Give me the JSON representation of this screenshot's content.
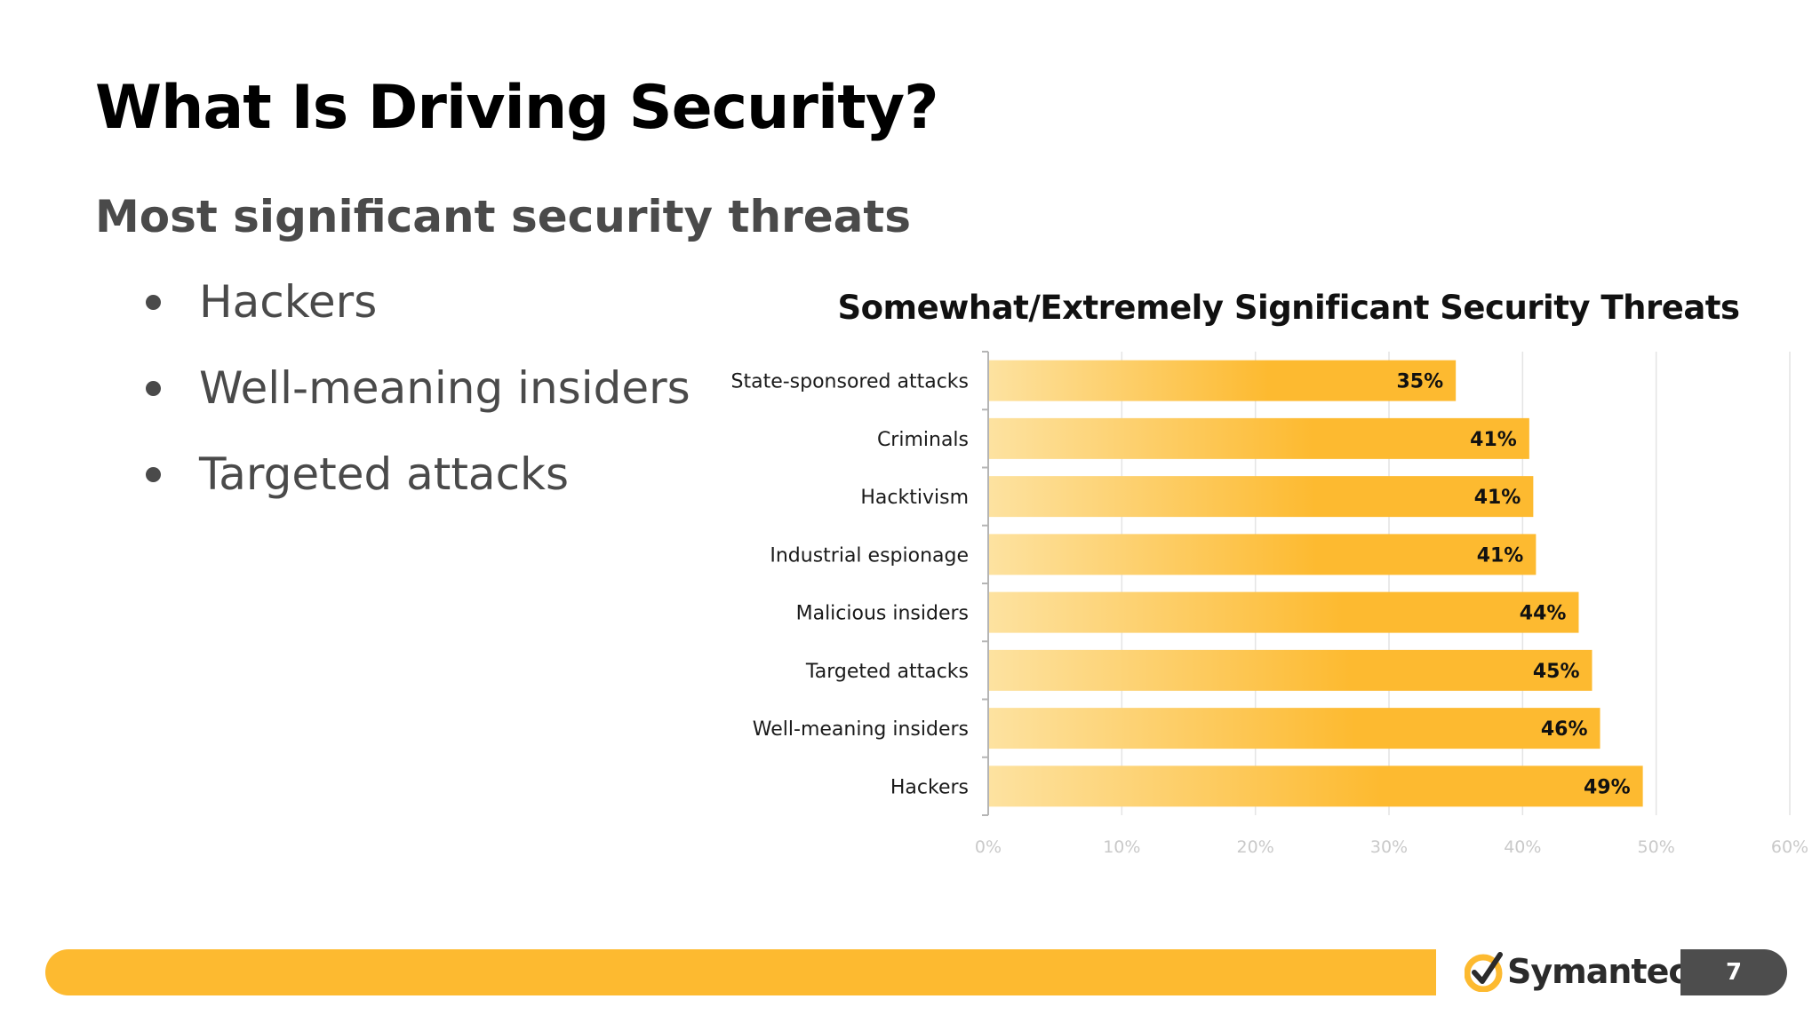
{
  "slide": {
    "title": "What Is Driving Security?",
    "subtitle": "Most significant security threats",
    "bullets": [
      "Hackers",
      "Well-meaning insiders",
      "Targeted attacks"
    ],
    "page_number": "7"
  },
  "brand": {
    "logo_text": "Symantec",
    "logo_suffix": ".",
    "accent_color": "#fdba30",
    "badge_color": "#4d4d4d",
    "logo_icon": "checkmark-circle-icon"
  },
  "chart_data": {
    "type": "bar",
    "orientation": "horizontal",
    "title": "Somewhat/Extremely Significant Security Threats",
    "categories": [
      "State-sponsored attacks",
      "Criminals",
      "Hacktivism",
      "Industrial espionage",
      "Malicious insiders",
      "Targeted attacks",
      "Well-meaning insiders",
      "Hackers"
    ],
    "values": [
      35,
      40.5,
      40.8,
      41,
      44.2,
      45.2,
      45.8,
      49
    ],
    "data_labels": [
      "35%",
      "41%",
      "41%",
      "41%",
      "44%",
      "45%",
      "46%",
      "49%"
    ],
    "x_ticks": [
      0,
      10,
      20,
      30,
      40,
      50,
      60
    ],
    "x_tick_labels": [
      "0%",
      "10%",
      "20%",
      "30%",
      "40%",
      "50%",
      "60%"
    ],
    "xlim": [
      0,
      60
    ],
    "xlabel": "",
    "ylabel": "",
    "grid": true,
    "bar_color_start": "#fde2a0",
    "bar_color_end": "#fdba30"
  }
}
